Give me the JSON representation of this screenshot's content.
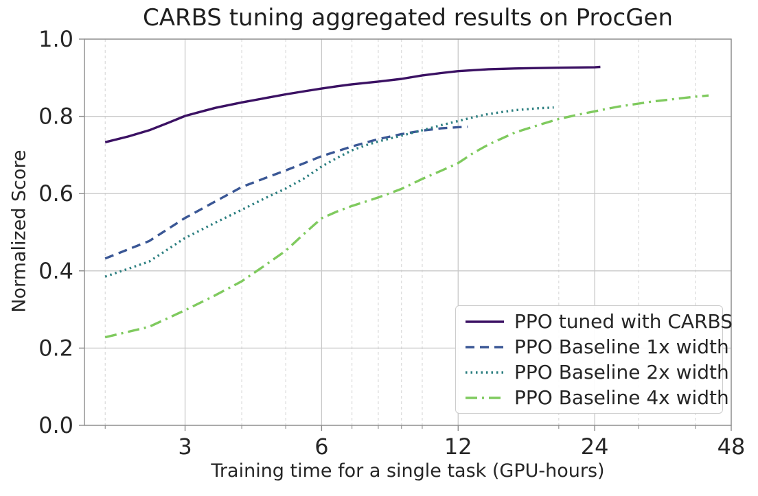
{
  "chart_data": {
    "type": "line",
    "title": "CARBS tuning aggregated results on ProcGen",
    "xlabel": "Training time for a single task (GPU-hours)",
    "ylabel": "Normalized Score",
    "x_scale": "log",
    "x_range": [
      1.8,
      48
    ],
    "y_range": [
      0.0,
      1.0
    ],
    "x_ticks": [
      3,
      6,
      12,
      24,
      48
    ],
    "x_tick_labels": [
      "3",
      "6",
      "12",
      "24",
      "48"
    ],
    "x_minor_ticks": [
      2,
      4,
      5,
      7,
      8,
      9,
      10,
      20,
      30,
      40
    ],
    "y_ticks": [
      0.0,
      0.2,
      0.4,
      0.6,
      0.8,
      1.0
    ],
    "y_tick_labels": [
      "0.0",
      "0.2",
      "0.4",
      "0.6",
      "0.8",
      "1.0"
    ],
    "grid": {
      "major": true,
      "minor_x_dashed": true
    },
    "legend_position": "lower right",
    "colors": {
      "major_grid": "#c9c9c9",
      "minor_grid": "#d7d7d7",
      "spine": "#8c8c8c",
      "tick": "#8c8c8c",
      "text": "#262626"
    },
    "series": [
      {
        "name": "PPO tuned with CARBS",
        "style": "solid",
        "color": "#3b1163",
        "x": [
          2,
          2.25,
          2.5,
          2.75,
          3,
          3.25,
          3.5,
          4,
          4.5,
          5,
          5.5,
          6,
          6.5,
          7,
          8,
          9,
          10,
          11,
          12,
          14,
          16,
          20,
          24,
          24.7
        ],
        "y": [
          0.733,
          0.748,
          0.764,
          0.783,
          0.801,
          0.812,
          0.822,
          0.836,
          0.847,
          0.857,
          0.865,
          0.872,
          0.878,
          0.883,
          0.89,
          0.897,
          0.906,
          0.912,
          0.917,
          0.922,
          0.924,
          0.926,
          0.927,
          0.928
        ]
      },
      {
        "name": "PPO Baseline 1x width",
        "style": "dashed",
        "color": "#3a5795",
        "x": [
          2,
          2.5,
          3,
          3.5,
          4,
          4.5,
          5,
          5.5,
          6,
          6.5,
          7,
          7.5,
          8,
          9,
          10,
          11,
          12,
          12.6
        ],
        "y": [
          0.432,
          0.477,
          0.537,
          0.58,
          0.617,
          0.64,
          0.66,
          0.679,
          0.697,
          0.71,
          0.722,
          0.732,
          0.741,
          0.754,
          0.763,
          0.769,
          0.772,
          0.773
        ]
      },
      {
        "name": "PPO Baseline 2x width",
        "style": "dotted",
        "color": "#2c7f80",
        "x": [
          2,
          2.5,
          3,
          3.5,
          4,
          4.5,
          5,
          5.5,
          6,
          6.5,
          7,
          7.5,
          8,
          9,
          10,
          11,
          12,
          13,
          14,
          16,
          18,
          19.5
        ],
        "y": [
          0.385,
          0.424,
          0.485,
          0.525,
          0.558,
          0.588,
          0.613,
          0.64,
          0.67,
          0.693,
          0.712,
          0.725,
          0.735,
          0.75,
          0.764,
          0.777,
          0.788,
          0.798,
          0.806,
          0.816,
          0.821,
          0.823
        ]
      },
      {
        "name": "PPO Baseline 4x width",
        "style": "dashdot",
        "color": "#7fca5e",
        "x": [
          2,
          2.5,
          3,
          3.5,
          4,
          4.5,
          5,
          5.5,
          6,
          6.5,
          7,
          7.5,
          8,
          9,
          10,
          11,
          12,
          13,
          14,
          16,
          18,
          20,
          22,
          24,
          27,
          30,
          32,
          36,
          40,
          42.8
        ],
        "y": [
          0.228,
          0.255,
          0.298,
          0.337,
          0.373,
          0.414,
          0.452,
          0.497,
          0.536,
          0.554,
          0.568,
          0.579,
          0.59,
          0.612,
          0.638,
          0.659,
          0.679,
          0.706,
          0.727,
          0.758,
          0.777,
          0.793,
          0.804,
          0.813,
          0.825,
          0.833,
          0.838,
          0.845,
          0.851,
          0.854
        ]
      }
    ]
  }
}
